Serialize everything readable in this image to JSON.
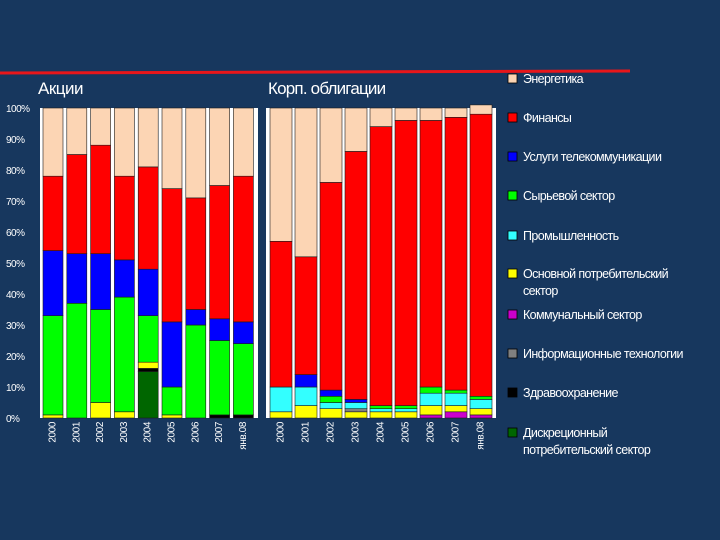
{
  "colors": {
    "background": "#17375e",
    "panel": "#ffffff",
    "accent_line": "#e8161a",
    "text": "#ffffff",
    "sectors": [
      "#006600",
      "#000000",
      "#808080",
      "#cc00cc",
      "#ffff00",
      "#33ffff",
      "#00ff00",
      "#0000ff",
      "#ff0000",
      "#fcd5b4",
      "#99ccff"
    ]
  },
  "chart_data": [
    {
      "type": "bar",
      "stacked": true,
      "title": "Акции",
      "xlabel": "",
      "ylabel": "",
      "ylim": [
        0,
        100
      ],
      "y_ticks": [
        "0%",
        "10%",
        "20%",
        "30%",
        "40%",
        "50%",
        "60%",
        "70%",
        "80%",
        "90%",
        "100%"
      ],
      "categories": [
        "2000",
        "2001",
        "2002",
        "2003",
        "2004",
        "2005",
        "2006",
        "2007",
        "янв.08"
      ],
      "series": [
        {
          "name": "Дискреционный потребительский сектор",
          "values": [
            0,
            0,
            0,
            0,
            15,
            0,
            0,
            0,
            0
          ]
        },
        {
          "name": "Здравоохранение",
          "values": [
            0,
            0,
            0,
            0,
            1,
            0,
            0,
            1,
            1
          ]
        },
        {
          "name": "Информационные технологии",
          "values": [
            0,
            0,
            0,
            0,
            0,
            0,
            0,
            0,
            0
          ]
        },
        {
          "name": "Коммунальный сектор",
          "values": [
            0,
            0,
            0,
            0,
            0,
            0,
            0,
            0,
            0
          ]
        },
        {
          "name": "Основной потребительский сектор",
          "values": [
            1,
            0,
            5,
            2,
            2,
            1,
            0,
            0,
            0
          ]
        },
        {
          "name": "Промышленность",
          "values": [
            0,
            0,
            0,
            0,
            0,
            0,
            0,
            0,
            0
          ]
        },
        {
          "name": "Сырьевой сектор",
          "values": [
            32,
            37,
            30,
            37,
            15,
            9,
            30,
            24,
            23
          ]
        },
        {
          "name": "Услуги телекоммуникации",
          "values": [
            21,
            16,
            18,
            12,
            15,
            21,
            5,
            7,
            7
          ]
        },
        {
          "name": "Финансы",
          "values": [
            24,
            32,
            35,
            27,
            33,
            43,
            36,
            43,
            47
          ]
        },
        {
          "name": "Энергетика",
          "values": [
            22,
            15,
            12,
            22,
            19,
            26,
            29,
            25,
            22
          ]
        }
      ]
    },
    {
      "type": "bar",
      "stacked": true,
      "title": "Корп. облигации",
      "xlabel": "",
      "ylabel": "",
      "ylim": [
        0,
        100
      ],
      "categories": [
        "2000",
        "2001",
        "2002",
        "2003",
        "2004",
        "2005",
        "2006",
        "2007",
        "янв.08"
      ],
      "series": [
        {
          "name": "Коммунальный сектор",
          "values": [
            0,
            0,
            0,
            0,
            0,
            0,
            1,
            2,
            1
          ]
        },
        {
          "name": "Основной потребительский сектор",
          "values": [
            2,
            4,
            3,
            2,
            2,
            2,
            3,
            2,
            2
          ]
        },
        {
          "name": "Информационные технологии",
          "values": [
            0,
            0,
            0,
            1,
            0,
            0,
            0,
            0,
            0
          ]
        },
        {
          "name": "Промышленность",
          "values": [
            8,
            6,
            2,
            2,
            1,
            1,
            4,
            4,
            3
          ]
        },
        {
          "name": "Сырьевой сектор",
          "values": [
            0,
            0,
            2,
            0,
            1,
            1,
            2,
            1,
            1
          ]
        },
        {
          "name": "Услуги телекоммуникации",
          "values": [
            0,
            4,
            2,
            1,
            0,
            0,
            0,
            0,
            0
          ]
        },
        {
          "name": "Финансы",
          "values": [
            47,
            38,
            67,
            80,
            90,
            92,
            86,
            88,
            91
          ]
        },
        {
          "name": "Энергетика",
          "values": [
            43,
            48,
            24,
            14,
            6,
            4,
            4,
            3,
            3
          ]
        }
      ]
    }
  ],
  "legend": {
    "position": "right",
    "items": [
      {
        "label_lines": [
          "Энергетика"
        ],
        "color": "#fcd5b4"
      },
      {
        "label_lines": [
          "Финансы"
        ],
        "color": "#ff0000"
      },
      {
        "label_lines": [
          "Услуги телекоммуникации"
        ],
        "color": "#0000ff"
      },
      {
        "label_lines": [
          "Сырьевой сектор"
        ],
        "color": "#00ff00"
      },
      {
        "label_lines": [
          "Промышленность"
        ],
        "color": "#33ffff"
      },
      {
        "label_lines": [
          "Основной потребительский",
          "сектор"
        ],
        "color": "#ffff00"
      },
      {
        "label_lines": [
          "Коммунальный сектор"
        ],
        "color": "#cc00cc"
      },
      {
        "label_lines": [
          "Информационные технологии"
        ],
        "color": "#808080"
      },
      {
        "label_lines": [
          "Здравоохранение"
        ],
        "color": "#000000"
      },
      {
        "label_lines": [
          "Дискреционный",
          "потребительский сектор"
        ],
        "color": "#006600"
      }
    ]
  }
}
